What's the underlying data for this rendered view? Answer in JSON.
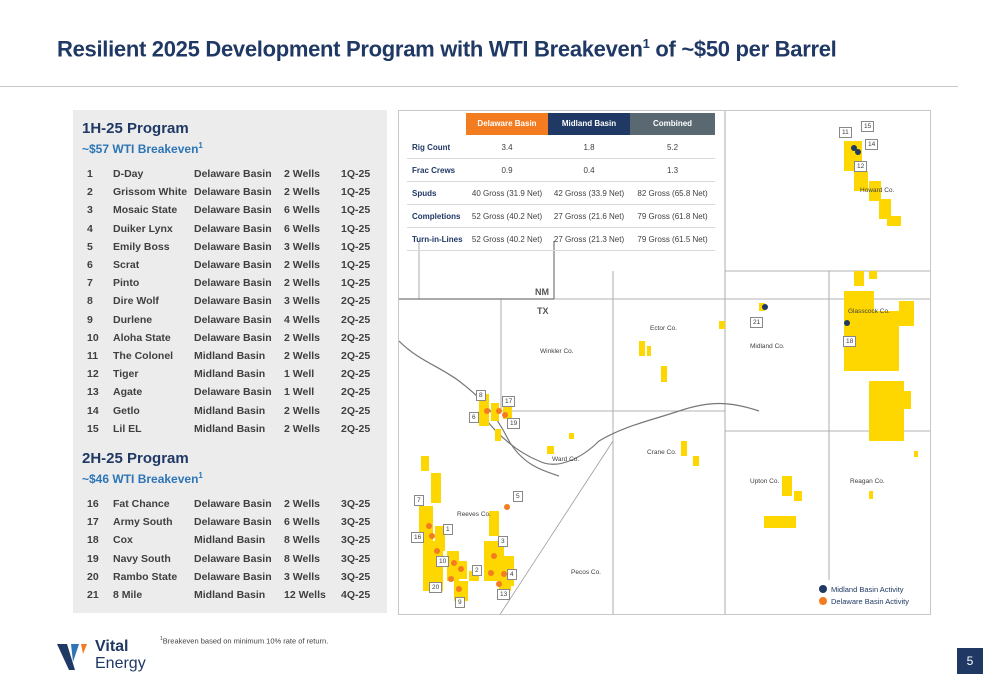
{
  "title_main": "Resilient 2025 Development Program with WTI Breakeven",
  "title_sup": "1",
  "title_tail": " of ~$50 per Barrel",
  "h1": {
    "title": "1H-25 Program",
    "sub": "~$57 WTI Breakeven",
    "sub_sup": "1"
  },
  "h2": {
    "title": "2H-25 Program",
    "sub": "~$46 WTI Breakeven",
    "sub_sup": "1"
  },
  "wells_1h": [
    {
      "num": "1",
      "name": "D-Day",
      "basin": "Delaware Basin",
      "wells": "2 Wells",
      "q": "1Q-25"
    },
    {
      "num": "2",
      "name": "Grissom White",
      "basin": "Delaware Basin",
      "wells": "2 Wells",
      "q": "1Q-25"
    },
    {
      "num": "3",
      "name": "Mosaic State",
      "basin": "Delaware Basin",
      "wells": "6 Wells",
      "q": "1Q-25"
    },
    {
      "num": "4",
      "name": "Duiker Lynx",
      "basin": "Delaware Basin",
      "wells": "6 Wells",
      "q": "1Q-25"
    },
    {
      "num": "5",
      "name": "Emily Boss",
      "basin": "Delaware Basin",
      "wells": "3 Wells",
      "q": "1Q-25"
    },
    {
      "num": "6",
      "name": "Scrat",
      "basin": "Delaware Basin",
      "wells": "2 Wells",
      "q": "1Q-25"
    },
    {
      "num": "7",
      "name": "Pinto",
      "basin": "Delaware Basin",
      "wells": "2 Wells",
      "q": "1Q-25"
    },
    {
      "num": "8",
      "name": "Dire Wolf",
      "basin": "Delaware Basin",
      "wells": "3 Wells",
      "q": "2Q-25"
    },
    {
      "num": "9",
      "name": "Durlene",
      "basin": "Delaware Basin",
      "wells": "4 Wells",
      "q": "2Q-25"
    },
    {
      "num": "10",
      "name": "Aloha State",
      "basin": "Delaware Basin",
      "wells": "2 Wells",
      "q": "2Q-25"
    },
    {
      "num": "11",
      "name": "The Colonel",
      "basin": "Midland  Basin",
      "wells": "2 Wells",
      "q": "2Q-25"
    },
    {
      "num": "12",
      "name": "Tiger",
      "basin": "Midland Basin",
      "wells": "1 Well",
      "q": "2Q-25"
    },
    {
      "num": "13",
      "name": "Agate",
      "basin": "Delaware Basin",
      "wells": "1 Well",
      "q": "2Q-25"
    },
    {
      "num": "14",
      "name": "Getlo",
      "basin": "Midland Basin",
      "wells": "2 Wells",
      "q": "2Q-25"
    },
    {
      "num": "15",
      "name": "Lil EL",
      "basin": "Midland Basin",
      "wells": "2 Wells",
      "q": "2Q-25"
    }
  ],
  "wells_2h": [
    {
      "num": "16",
      "name": "Fat Chance",
      "basin": "Delaware Basin",
      "wells": "2 Wells",
      "q": "3Q-25"
    },
    {
      "num": "17",
      "name": "Army South",
      "basin": "Delaware Basin",
      "wells": "6 Wells",
      "q": "3Q-25"
    },
    {
      "num": "18",
      "name": "Cox",
      "basin": "Midland Basin",
      "wells": "8 Wells",
      "q": "3Q-25"
    },
    {
      "num": "19",
      "name": "Navy South",
      "basin": "Delaware Basin",
      "wells": "8 Wells",
      "q": "3Q-25"
    },
    {
      "num": "20",
      "name": "Rambo State",
      "basin": "Delaware Basin",
      "wells": "3 Wells",
      "q": "3Q-25"
    },
    {
      "num": "21",
      "name": "8 Mile",
      "basin": "Midland Basin",
      "wells": "12 Wells",
      "q": "4Q-25"
    }
  ],
  "stats": {
    "headers": {
      "delaware": "Delaware Basin",
      "midland": "Midland Basin",
      "combined": "Combined"
    },
    "rows": [
      {
        "label": "Rig Count",
        "delaware": "3.4",
        "midland": "1.8",
        "combined": "5.2"
      },
      {
        "label": "Frac Crews",
        "delaware": "0.9",
        "midland": "0.4",
        "combined": "1.3"
      },
      {
        "label": "Spuds",
        "delaware": "40 Gross (31.9 Net)",
        "midland": "42 Gross (33.9 Net)",
        "combined": "82 Gross (65.8 Net)"
      },
      {
        "label": "Completions",
        "delaware": "52 Gross (40.2 Net)",
        "midland": "27 Gross (21.6 Net)",
        "combined": "79 Gross (61.8 Net)"
      },
      {
        "label": "Turn-in-Lines",
        "delaware": "52 Gross (40.2 Net)",
        "midland": "27 Gross (21.3 Net)",
        "combined": "79 Gross (61.5 Net)"
      }
    ]
  },
  "map": {
    "states": {
      "nm": "NM",
      "tx": "TX"
    },
    "counties": {
      "howard": "Howard Co.",
      "glasscock": "Glasscock Co.",
      "ector": "Ector Co.",
      "midland": "Midland Co.",
      "winkler": "Winkler Co.",
      "ward": "Ward Co.",
      "crane": "Crane Co.",
      "upton": "Upton Co.",
      "reagan": "Reagan Co.",
      "reeves": "Reeves Co.",
      "pecos": "Pecos Co."
    },
    "badges": [
      "11",
      "15",
      "14",
      "12",
      "21",
      "18",
      "8",
      "17",
      "6",
      "19",
      "5",
      "7",
      "1",
      "16",
      "3",
      "10",
      "2",
      "4",
      "20",
      "13",
      "9"
    ],
    "legend": {
      "midland": "Midland Basin Activity",
      "delaware": "Delaware Basin Activity"
    },
    "colors": {
      "midland": "#1f3864",
      "delaware": "#f47c20",
      "acreage": "#ffd700"
    }
  },
  "footnote": {
    "sup": "1",
    "text": "Breakeven based on minimum 10% rate of return."
  },
  "logo": {
    "line1": "Vital",
    "line2": "Energy"
  },
  "page_number": "5"
}
